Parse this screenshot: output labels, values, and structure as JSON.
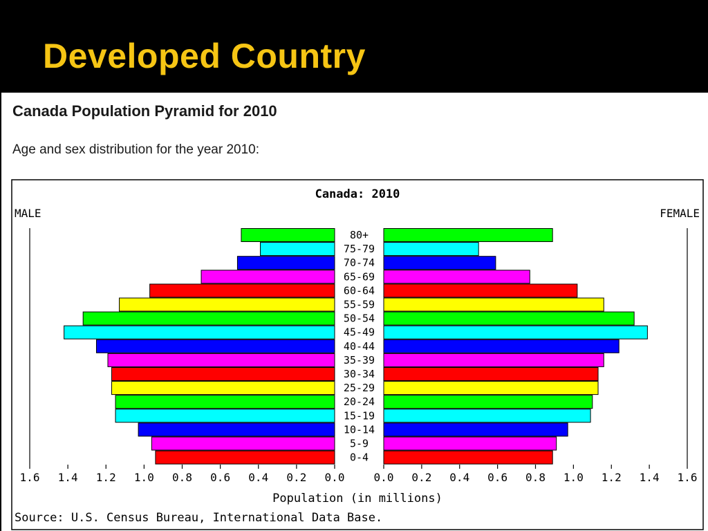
{
  "slide": {
    "title": "Developed Country"
  },
  "page": {
    "heading": "Canada Population Pyramid for 2010",
    "subheading": "Age and sex distribution for the year 2010:"
  },
  "chart_data": {
    "type": "bar",
    "orientation": "population-pyramid",
    "title": "Canada: 2010",
    "left_label": "MALE",
    "right_label": "FEMALE",
    "xlabel": "Population (in millions)",
    "source": "Source: U.S. Census Bureau, International Data Base.",
    "xlim": [
      0,
      1.6
    ],
    "ticks": [
      "1.6",
      "1.4",
      "1.2",
      "1.0",
      "0.8",
      "0.6",
      "0.4",
      "0.2",
      "0.0"
    ],
    "categories": [
      "80+",
      "75-79",
      "70-74",
      "65-69",
      "60-64",
      "55-59",
      "50-54",
      "45-49",
      "40-44",
      "35-39",
      "30-34",
      "25-29",
      "20-24",
      "15-19",
      "10-14",
      "5-9",
      "0-4"
    ],
    "colors": [
      "#00ff00",
      "#00ffff",
      "#0000ff",
      "#ff00ff",
      "#ff0000",
      "#ffff00",
      "#00ff00",
      "#00ffff",
      "#0000ff",
      "#ff00ff",
      "#ff0000",
      "#ffff00",
      "#00ff00",
      "#00ffff",
      "#0000ff",
      "#ff00ff",
      "#ff0000"
    ],
    "series": [
      {
        "name": "MALE",
        "values": [
          0.49,
          0.39,
          0.51,
          0.7,
          0.97,
          1.13,
          1.32,
          1.42,
          1.25,
          1.19,
          1.17,
          1.17,
          1.15,
          1.15,
          1.03,
          0.96,
          0.94
        ]
      },
      {
        "name": "FEMALE",
        "values": [
          0.89,
          0.5,
          0.59,
          0.77,
          1.02,
          1.16,
          1.32,
          1.39,
          1.24,
          1.16,
          1.13,
          1.13,
          1.1,
          1.09,
          0.97,
          0.91,
          0.89
        ]
      }
    ]
  }
}
